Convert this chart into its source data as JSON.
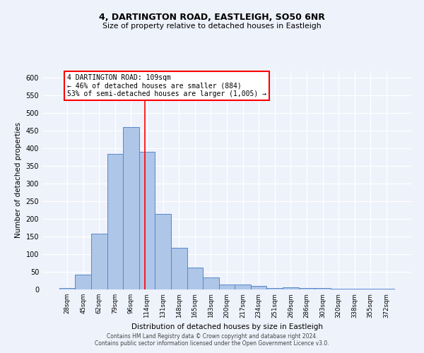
{
  "title1": "4, DARTINGTON ROAD, EASTLEIGH, SO50 6NR",
  "title2": "Size of property relative to detached houses in Eastleigh",
  "xlabel": "Distribution of detached houses by size in Eastleigh",
  "ylabel": "Number of detached properties",
  "categories": [
    "28sqm",
    "45sqm",
    "62sqm",
    "79sqm",
    "96sqm",
    "114sqm",
    "131sqm",
    "148sqm",
    "165sqm",
    "183sqm",
    "200sqm",
    "217sqm",
    "234sqm",
    "251sqm",
    "269sqm",
    "286sqm",
    "303sqm",
    "320sqm",
    "338sqm",
    "355sqm",
    "372sqm"
  ],
  "values": [
    5,
    42,
    158,
    385,
    460,
    390,
    215,
    118,
    63,
    35,
    15,
    15,
    10,
    5,
    7,
    5,
    5,
    3,
    3,
    3,
    2
  ],
  "bar_color": "#aec6e8",
  "bar_edge_color": "#5588cc",
  "bar_width": 1.0,
  "red_line_x": 4.88,
  "annotation_text": "4 DARTINGTON ROAD: 109sqm\n← 46% of detached houses are smaller (884)\n53% of semi-detached houses are larger (1,005) →",
  "ylim": [
    0,
    620
  ],
  "yticks": [
    0,
    50,
    100,
    150,
    200,
    250,
    300,
    350,
    400,
    450,
    500,
    550,
    600
  ],
  "footer1": "Contains HM Land Registry data © Crown copyright and database right 2024.",
  "footer2": "Contains public sector information licensed under the Open Government Licence v3.0.",
  "bg_color": "#eef2fb",
  "plot_bg_color": "#eef2fb"
}
